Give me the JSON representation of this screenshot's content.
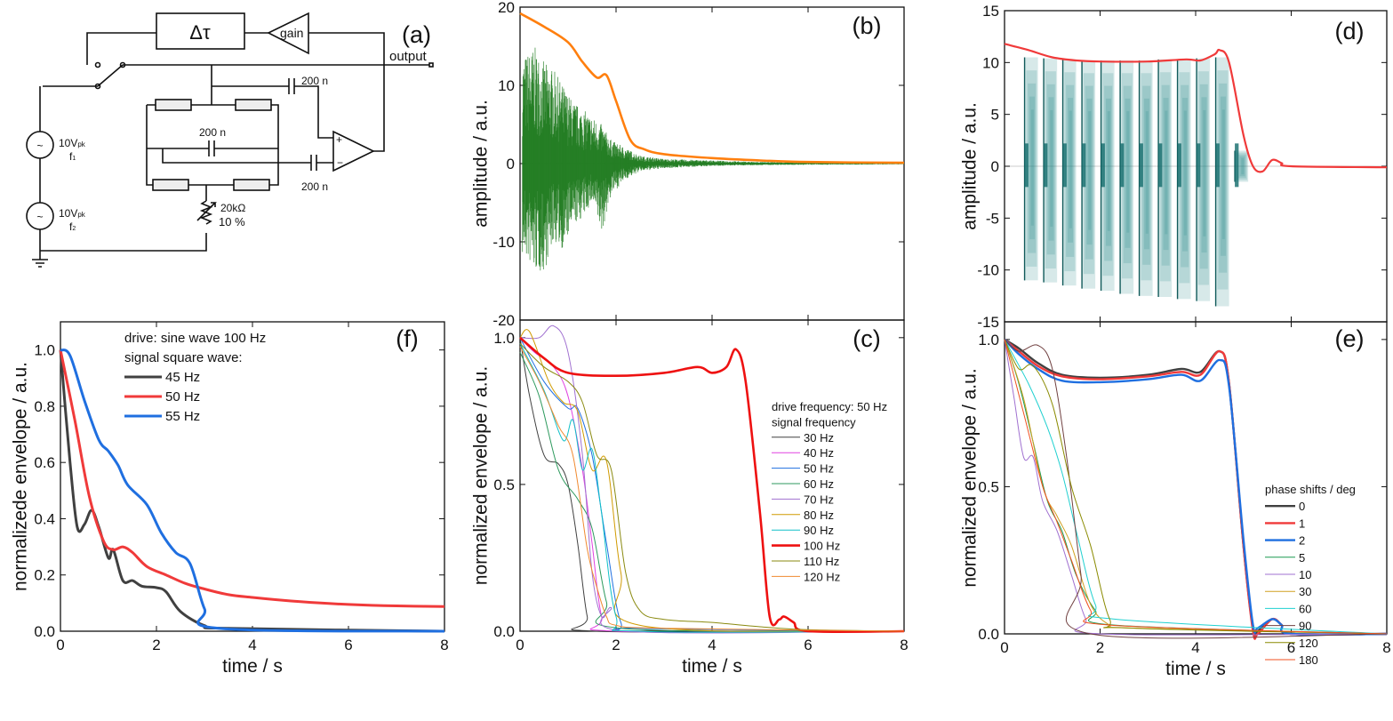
{
  "circuit": {
    "panel_label": "(a)",
    "delay_label": "Δτ",
    "gain_label": "gain",
    "output_label": "output",
    "cap1": "200 n",
    "cap2": "200 n",
    "cap3": "200 n",
    "source1_amp": "10V",
    "source1_sub": "pk",
    "source1_freq": "f",
    "source1_idx": "1",
    "source2_amp": "10V",
    "source2_sub": "pk",
    "source2_freq": "f",
    "source2_idx": "2",
    "pot_value": "20kΩ",
    "pot_tol": "10 %"
  },
  "colors": {
    "orange": "#ff7f0e",
    "green": "#1e7b1e",
    "red": "#f03a3a",
    "blue": "#1f6fe0",
    "teal": "#1f8585",
    "gray": "#404040"
  },
  "chart_data": [
    {
      "id": "b",
      "panel_label": "(b)",
      "type": "line",
      "xlabel": "",
      "ylabel": "amplitude / a.u.",
      "xlim": [
        0,
        8
      ],
      "ylim": [
        -20,
        20
      ],
      "yticks": [
        -20,
        -10,
        0,
        10,
        20
      ],
      "xticks": [],
      "signal_envelope_samples": {
        "x": [
          0.1,
          0.3,
          0.5,
          0.7,
          0.9,
          1.1,
          1.3,
          1.5,
          1.7,
          1.9,
          2.2,
          2.5,
          3,
          4,
          5,
          6,
          8
        ],
        "upper": [
          14,
          15,
          13,
          12,
          10,
          8,
          7,
          6,
          5,
          3,
          2,
          1,
          0.6,
          0.4,
          0.2,
          0.15,
          0.1
        ],
        "lower": [
          -12,
          -14,
          -14,
          -10,
          -11,
          -8,
          -7,
          -5,
          -9,
          -4,
          -2,
          -1,
          -0.6,
          -0.3,
          -0.2,
          -0.15,
          -0.1
        ]
      },
      "series": [
        {
          "x": [
            0,
            0.5,
            1,
            1.3,
            1.6,
            1.8,
            2.0,
            2.3,
            2.6,
            3,
            4,
            5,
            6,
            8
          ],
          "y": [
            19.2,
            17.5,
            15.5,
            13,
            11,
            11.3,
            8,
            3,
            1.8,
            1.2,
            0.7,
            0.4,
            0.2,
            0.1
          ],
          "color": "#ff7f0e",
          "width": 2.6
        }
      ]
    },
    {
      "id": "c",
      "panel_label": "(c)",
      "type": "line",
      "xlabel": "time / s",
      "ylabel": "normalized envelope / a.u.",
      "xlim": [
        0,
        8
      ],
      "ylim": [
        0,
        1.06
      ],
      "yticks": [
        "0.0",
        "0.5",
        "1.0"
      ],
      "xticks": [
        0,
        2,
        4,
        6,
        8
      ],
      "legend_title": "drive frequency: 50 Hz",
      "legend_subtitle": "signal frequency",
      "legend": "right",
      "series": [
        {
          "name": "30 Hz",
          "color": "#404040",
          "width": 1,
          "x": [
            0,
            0.2,
            0.5,
            0.8,
            1.0,
            1.2,
            1.4,
            1.6,
            8
          ],
          "y": [
            1,
            0.8,
            0.6,
            0.57,
            0.5,
            0.3,
            0.05,
            0,
            0
          ]
        },
        {
          "name": "40 Hz",
          "color": "#e040e0",
          "width": 1,
          "x": [
            0,
            0.3,
            0.7,
            1.0,
            1.3,
            1.5,
            1.7,
            2,
            8
          ],
          "y": [
            1,
            0.95,
            0.9,
            0.8,
            0.55,
            0.3,
            0.05,
            0,
            0
          ]
        },
        {
          "name": "50 Hz",
          "color": "#1f6fe0",
          "width": 1,
          "x": [
            0,
            0.5,
            1,
            1.2,
            1.5,
            1.8,
            2.1,
            2.5,
            8
          ],
          "y": [
            1,
            0.85,
            0.76,
            0.76,
            0.6,
            0.3,
            0.03,
            0.01,
            0
          ]
        },
        {
          "name": "60 Hz",
          "color": "#2e9a5e",
          "width": 1,
          "x": [
            0,
            0.4,
            0.8,
            1.2,
            1.5,
            1.8,
            2.1,
            8
          ],
          "y": [
            0.95,
            0.8,
            0.55,
            0.45,
            0.35,
            0.1,
            0.01,
            0
          ]
        },
        {
          "name": "70 Hz",
          "color": "#a070d0",
          "width": 1,
          "x": [
            0,
            0.4,
            0.7,
            1,
            1.3,
            1.5,
            1.7,
            1.9,
            2.2,
            8
          ],
          "y": [
            1,
            1.0,
            1.04,
            0.95,
            0.6,
            0.2,
            0.05,
            0.08,
            0,
            0
          ]
        },
        {
          "name": "80 Hz",
          "color": "#d09a00",
          "width": 1,
          "x": [
            0,
            0.2,
            0.6,
            0.9,
            1.2,
            1.5,
            1.8,
            2.1,
            2.5,
            8
          ],
          "y": [
            1,
            1.02,
            0.85,
            0.78,
            0.75,
            0.55,
            0.58,
            0.2,
            0.02,
            0
          ]
        },
        {
          "name": "90 Hz",
          "color": "#10c0c8",
          "width": 1,
          "x": [
            0,
            0.5,
            0.9,
            1.1,
            1.3,
            1.5,
            1.7,
            2,
            2.5,
            8
          ],
          "y": [
            0.98,
            0.82,
            0.65,
            0.72,
            0.55,
            0.62,
            0.4,
            0.05,
            0,
            0
          ]
        },
        {
          "name": "100 Hz",
          "color": "#ee1111",
          "width": 2.6,
          "x": [
            0,
            0.5,
            1,
            2,
            3,
            3.7,
            4,
            4.3,
            4.5,
            4.7,
            5,
            5.2,
            5.4,
            5.5,
            5.7,
            6,
            8
          ],
          "y": [
            1,
            0.93,
            0.88,
            0.87,
            0.88,
            0.9,
            0.88,
            0.9,
            0.96,
            0.85,
            0.4,
            0.05,
            0.04,
            0.05,
            0.03,
            0,
            0
          ]
        },
        {
          "name": "110 Hz",
          "color": "#8a8a10",
          "width": 1,
          "x": [
            0,
            0.5,
            1,
            1.3,
            1.6,
            1.9,
            2.2,
            2.5,
            3,
            4,
            5,
            6,
            8
          ],
          "y": [
            0.98,
            0.9,
            0.85,
            0.78,
            0.6,
            0.55,
            0.2,
            0.07,
            0.04,
            0.03,
            0.015,
            0.005,
            0
          ]
        },
        {
          "name": "120 Hz",
          "color": "#f08a30",
          "width": 1,
          "x": [
            0,
            0.4,
            0.8,
            1.1,
            1.4,
            1.6,
            1.8,
            2,
            3,
            8
          ],
          "y": [
            0.97,
            0.85,
            0.7,
            0.6,
            0.28,
            0.15,
            0.05,
            0.02,
            0.01,
            0
          ]
        }
      ]
    },
    {
      "id": "d",
      "panel_label": "(d)",
      "type": "line",
      "xlabel": "",
      "ylabel": "amplitude / a.u.",
      "xlim": [
        0,
        8
      ],
      "ylim": [
        -15,
        15
      ],
      "yticks": [
        -15,
        -10,
        -5,
        0,
        5,
        10,
        15
      ],
      "xticks": [],
      "bursts": {
        "t": [
          0.42,
          0.82,
          1.22,
          1.62,
          2.02,
          2.42,
          2.82,
          3.22,
          3.62,
          4.02,
          4.42,
          4.82
        ],
        "upper": [
          10.5,
          10.4,
          10.3,
          10.2,
          10.2,
          10.2,
          10.2,
          10.3,
          10.3,
          10.4,
          10.5,
          1.5
        ],
        "lower": [
          -11,
          -11.2,
          -11.5,
          -11.8,
          -12,
          -12.3,
          -12.5,
          -12.6,
          -12.8,
          -13,
          -13.5,
          -1.5
        ]
      },
      "series": [
        {
          "x": [
            0,
            0.5,
            1,
            1.5,
            2,
            3,
            3.8,
            4.1,
            4.4,
            4.5,
            4.7,
            5,
            5.2,
            5.4,
            5.6,
            5.8,
            6,
            8
          ],
          "y": [
            11.8,
            11.2,
            10.5,
            10.2,
            10.1,
            10.1,
            10.3,
            10.2,
            10.8,
            11.2,
            10,
            3,
            0,
            -0.5,
            0.6,
            0.3,
            0,
            -0.1
          ],
          "color": "#f03a3a",
          "width": 2.2
        }
      ]
    },
    {
      "id": "e",
      "panel_label": "(e)",
      "type": "line",
      "xlabel": "time / s",
      "ylabel": "normalized envelope / a.u.",
      "xlim": [
        0,
        8
      ],
      "ylim": [
        0,
        1.06
      ],
      "yticks": [
        "0.0",
        "0.5",
        "1.0"
      ],
      "xticks": [
        0,
        2,
        4,
        6,
        8
      ],
      "legend_title": "phase shifts / deg",
      "legend": "right",
      "series": [
        {
          "name": "0",
          "color": "#404040",
          "width": 2.4,
          "x": [
            0,
            0.3,
            0.7,
            1.2,
            2,
            3,
            3.7,
            4.1,
            4.5,
            4.7,
            5,
            5.2,
            5.3,
            5.6,
            5.8,
            6,
            8
          ],
          "y": [
            1,
            0.97,
            0.92,
            0.88,
            0.87,
            0.88,
            0.9,
            0.89,
            0.96,
            0.85,
            0.3,
            0.02,
            0.01,
            0.05,
            0.03,
            0,
            0
          ]
        },
        {
          "name": "1",
          "color": "#f03a3a",
          "width": 2.4,
          "x": [
            0,
            0.3,
            0.7,
            1.2,
            2,
            3,
            3.7,
            4.1,
            4.5,
            4.7,
            5,
            5.2,
            5.3,
            5.6,
            5.8,
            6,
            8
          ],
          "y": [
            1,
            0.96,
            0.91,
            0.875,
            0.865,
            0.875,
            0.89,
            0.88,
            0.96,
            0.85,
            0.3,
            0.01,
            0.0,
            0.05,
            0.03,
            0,
            0
          ]
        },
        {
          "name": "2",
          "color": "#1f6fe0",
          "width": 2.4,
          "x": [
            0,
            0.3,
            0.7,
            1.2,
            2,
            3,
            3.7,
            4.1,
            4.5,
            4.7,
            5,
            5.2,
            5.3,
            5.6,
            5.8,
            6,
            8
          ],
          "y": [
            1,
            0.95,
            0.9,
            0.86,
            0.855,
            0.865,
            0.88,
            0.86,
            0.93,
            0.84,
            0.32,
            0.03,
            0.02,
            0.05,
            0.03,
            0,
            0
          ]
        },
        {
          "name": "5",
          "color": "#1a9a50",
          "width": 1,
          "x": [
            0,
            0.3,
            0.6,
            0.9,
            1.2,
            1.5,
            1.9,
            2.3,
            8
          ],
          "y": [
            1,
            0.85,
            0.65,
            0.45,
            0.35,
            0.2,
            0.08,
            0.03,
            0
          ]
        },
        {
          "name": "10",
          "color": "#a070d0",
          "width": 1,
          "x": [
            0,
            0.2,
            0.4,
            0.6,
            0.8,
            1.1,
            1.4,
            1.7,
            2,
            8
          ],
          "y": [
            1,
            0.8,
            0.6,
            0.6,
            0.45,
            0.35,
            0.2,
            0.05,
            0,
            0
          ]
        },
        {
          "name": "30",
          "color": "#d0a020",
          "width": 1,
          "x": [
            0,
            0.4,
            0.8,
            1.1,
            1.4,
            1.8,
            2.2,
            2.6,
            8
          ],
          "y": [
            1,
            0.8,
            0.5,
            0.4,
            0.3,
            0.1,
            0.03,
            0.02,
            0
          ]
        },
        {
          "name": "60",
          "color": "#20d0d0",
          "width": 1,
          "x": [
            0,
            0.5,
            0.9,
            1.2,
            1.5,
            1.9,
            2.3,
            8
          ],
          "y": [
            1,
            0.85,
            0.7,
            0.55,
            0.35,
            0.1,
            0.05,
            0
          ]
        },
        {
          "name": "90",
          "color": "#704040",
          "width": 1,
          "x": [
            0,
            0.3,
            0.7,
            1,
            1.3,
            1.6,
            1.8,
            8
          ],
          "y": [
            1,
            0.96,
            0.98,
            0.9,
            0.6,
            0.2,
            0,
            0
          ]
        },
        {
          "name": "120",
          "color": "#8a8a00",
          "width": 1,
          "x": [
            0,
            0.3,
            0.6,
            1,
            1.4,
            1.8,
            2.2,
            2.6,
            8
          ],
          "y": [
            1,
            0.9,
            0.91,
            0.78,
            0.5,
            0.3,
            0.05,
            0.02,
            0
          ]
        },
        {
          "name": "180",
          "color": "#f05020",
          "width": 1,
          "x": [
            0,
            0.4,
            0.8,
            1.1,
            1.4,
            1.8,
            2.2,
            8
          ],
          "y": [
            1,
            0.75,
            0.5,
            0.38,
            0.25,
            0.08,
            0.03,
            0
          ]
        }
      ]
    },
    {
      "id": "f",
      "panel_label": "(f)",
      "type": "line",
      "xlabel": "time / s",
      "ylabel": "normalizede envelope / a.u.",
      "xlim": [
        0,
        8
      ],
      "ylim": [
        0,
        1.1
      ],
      "yticks": [
        "0.0",
        "0.2",
        "0.4",
        "0.6",
        "0.8",
        "1.0"
      ],
      "xticks": [
        0,
        2,
        4,
        6,
        8
      ],
      "legend_title": "drive: sine wave 100 Hz",
      "legend_subtitle": "signal square wave:",
      "legend": "top-center",
      "series": [
        {
          "name": "45 Hz",
          "color": "#404040",
          "width": 3,
          "x": [
            0,
            0.2,
            0.35,
            0.5,
            0.65,
            0.8,
            1.0,
            1.1,
            1.3,
            1.5,
            1.7,
            2.0,
            2.2,
            2.5,
            3,
            3.5,
            8
          ],
          "y": [
            1,
            0.6,
            0.37,
            0.38,
            0.43,
            0.37,
            0.26,
            0.29,
            0.18,
            0.18,
            0.16,
            0.155,
            0.14,
            0.07,
            0.02,
            0.01,
            0
          ]
        },
        {
          "name": "50 Hz",
          "color": "#f03a3a",
          "width": 3,
          "x": [
            0,
            0.3,
            0.6,
            0.9,
            1.1,
            1.3,
            1.5,
            1.8,
            2.2,
            2.6,
            3,
            3.5,
            4,
            5,
            6,
            7,
            8
          ],
          "y": [
            1,
            0.75,
            0.48,
            0.32,
            0.29,
            0.3,
            0.28,
            0.23,
            0.2,
            0.17,
            0.15,
            0.13,
            0.12,
            0.105,
            0.095,
            0.09,
            0.088
          ]
        },
        {
          "name": "55 Hz",
          "color": "#1f6fe0",
          "width": 3,
          "x": [
            0,
            0.2,
            0.5,
            0.8,
            1.0,
            1.2,
            1.4,
            1.8,
            2.1,
            2.4,
            2.7,
            3,
            3.3,
            8
          ],
          "y": [
            1,
            0.98,
            0.82,
            0.68,
            0.64,
            0.59,
            0.52,
            0.45,
            0.35,
            0.28,
            0.24,
            0.08,
            0.01,
            0
          ]
        }
      ]
    }
  ]
}
